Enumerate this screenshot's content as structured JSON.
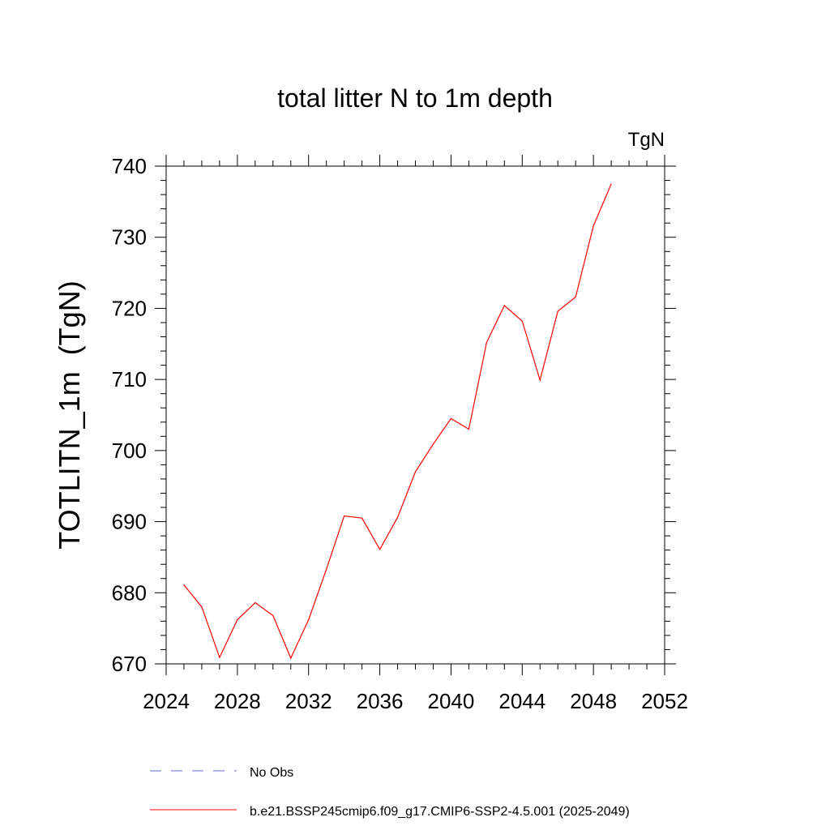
{
  "chart_data": {
    "type": "line",
    "title": "total litter N to 1m depth",
    "units_label": "TgN",
    "ylabel": "TOTLITN_1m  (TgN)",
    "xlabel": "",
    "xlim": [
      2024,
      2052
    ],
    "ylim": [
      670,
      740
    ],
    "x_ticks": [
      2024,
      2028,
      2032,
      2036,
      2040,
      2044,
      2048,
      2052
    ],
    "y_ticks": [
      670,
      680,
      690,
      700,
      710,
      720,
      730,
      740
    ],
    "x_tick_labels": [
      "2024",
      "2028",
      "2032",
      "2036",
      "2040",
      "2044",
      "2048",
      "2052"
    ],
    "y_tick_labels": [
      "670",
      "680",
      "690",
      "700",
      "710",
      "720",
      "730",
      "740"
    ],
    "grid": false,
    "legend_position": "bottom",
    "series": [
      {
        "name": "b.e21.BSSP245cmip6.f09_g17.CMIP6-SSP2-4.5.001 (2025-2049)",
        "color": "#ff0000",
        "style": "solid",
        "x": [
          2025,
          2026,
          2027,
          2028,
          2029,
          2030,
          2031,
          2032,
          2033,
          2034,
          2035,
          2036,
          2037,
          2038,
          2039,
          2040,
          2041,
          2042,
          2043,
          2044,
          2045,
          2046,
          2047,
          2048,
          2049
        ],
        "values": [
          681.1,
          678.0,
          670.9,
          676.2,
          678.6,
          676.8,
          670.8,
          676.2,
          683.3,
          690.8,
          690.5,
          686.1,
          690.6,
          697.0,
          700.9,
          704.5,
          703.0,
          715.2,
          720.4,
          718.2,
          709.9,
          719.6,
          721.6,
          731.6,
          737.5
        ]
      },
      {
        "name": "No Obs",
        "color": "#6666cc",
        "style": "dashed",
        "x": [],
        "values": []
      }
    ]
  }
}
